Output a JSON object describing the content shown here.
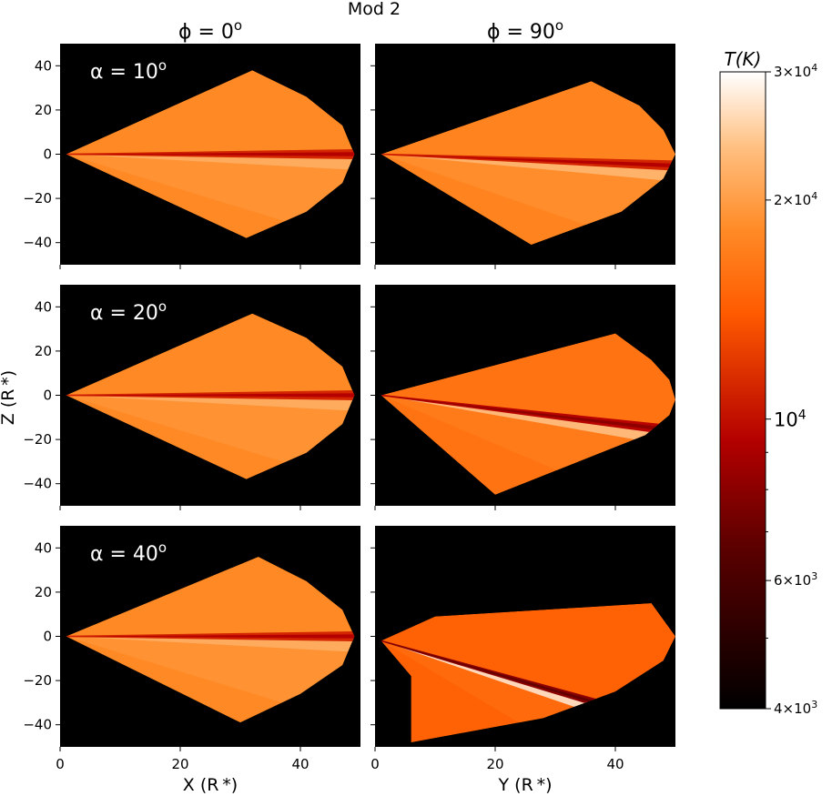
{
  "chart_data": {
    "type": "heatmap",
    "title": "Mod 2",
    "column_titles": [
      "ϕ = 0",
      "ϕ = 90"
    ],
    "column_title_superscript": "o",
    "row_labels": [
      "α = 10",
      "α = 20",
      "α = 40"
    ],
    "row_label_superscript": "o",
    "xlabels": [
      "X (R *)",
      "Y (R *)"
    ],
    "ylabel": "Z (R *)",
    "xlim": [
      0,
      50
    ],
    "ylim": [
      -50,
      50
    ],
    "xticks": [
      0,
      20,
      40
    ],
    "yticks": [
      40,
      20,
      0,
      -20,
      -40
    ],
    "colorbar": {
      "label": "T(K)",
      "scale": "log",
      "range": [
        4000,
        30000
      ],
      "ticks": [
        {
          "value": 30000,
          "mantissa": "3",
          "base": "10",
          "exp": "4"
        },
        {
          "value": 20000,
          "mantissa": "2",
          "base": "10",
          "exp": "4"
        },
        {
          "value": 10000,
          "mantissa": "",
          "base": "10",
          "exp": "4"
        },
        {
          "value": 6000,
          "mantissa": "6",
          "base": "10",
          "exp": "3"
        },
        {
          "value": 4000,
          "mantissa": "4",
          "base": "10",
          "exp": "3"
        }
      ],
      "minor_ticks": [
        5000,
        7000,
        8000,
        9000
      ],
      "stops": [
        {
          "t": 0.0,
          "color": "#000000"
        },
        {
          "t": 0.25,
          "color": "#5a0000"
        },
        {
          "t": 0.42,
          "color": "#b30000"
        },
        {
          "t": 0.62,
          "color": "#ff5a00"
        },
        {
          "t": 0.75,
          "color": "#ff8a25"
        },
        {
          "t": 0.88,
          "color": "#ffbf80"
        },
        {
          "t": 1.0,
          "color": "#ffffff"
        }
      ]
    },
    "panels": [
      {
        "row": 0,
        "col": 0,
        "bulk_temp_K": 18000,
        "disk_temp_K": 11000,
        "bright_temp_K": 22000,
        "outline": [
          [
            1,
            0
          ],
          [
            32,
            38
          ],
          [
            41,
            26
          ],
          [
            47,
            13
          ],
          [
            49,
            0
          ],
          [
            47,
            -13
          ],
          [
            41,
            -26
          ],
          [
            31,
            -38
          ]
        ],
        "disk_tilt": 0
      },
      {
        "row": 0,
        "col": 1,
        "bulk_temp_K": 17500,
        "disk_temp_K": 11000,
        "bright_temp_K": 23000,
        "outline": [
          [
            1,
            0
          ],
          [
            36,
            33
          ],
          [
            44,
            22
          ],
          [
            48,
            11
          ],
          [
            50,
            0
          ],
          [
            48,
            -11
          ],
          [
            41,
            -26
          ],
          [
            26,
            -41
          ]
        ],
        "disk_tilt": -6
      },
      {
        "row": 1,
        "col": 0,
        "bulk_temp_K": 18000,
        "disk_temp_K": 11000,
        "bright_temp_K": 22000,
        "outline": [
          [
            1,
            0
          ],
          [
            32,
            37
          ],
          [
            41,
            26
          ],
          [
            47,
            13
          ],
          [
            49,
            0
          ],
          [
            47,
            -13
          ],
          [
            41,
            -26
          ],
          [
            31,
            -38
          ]
        ],
        "disk_tilt": 0
      },
      {
        "row": 1,
        "col": 1,
        "bulk_temp_K": 16000,
        "disk_temp_K": 9500,
        "bright_temp_K": 24000,
        "outline": [
          [
            1,
            0
          ],
          [
            40,
            28
          ],
          [
            46,
            16
          ],
          [
            49,
            7
          ],
          [
            50,
            -2
          ],
          [
            49,
            -9
          ],
          [
            45,
            -18
          ],
          [
            20,
            -45
          ]
        ],
        "disk_tilt": -18
      },
      {
        "row": 2,
        "col": 0,
        "bulk_temp_K": 18000,
        "disk_temp_K": 11000,
        "bright_temp_K": 22000,
        "outline": [
          [
            1,
            0
          ],
          [
            33,
            36
          ],
          [
            41,
            25
          ],
          [
            47,
            12
          ],
          [
            49,
            0
          ],
          [
            47,
            -13
          ],
          [
            40,
            -26
          ],
          [
            30,
            -39
          ]
        ],
        "disk_tilt": 0
      },
      {
        "row": 2,
        "col": 1,
        "bulk_temp_K": 14500,
        "disk_temp_K": 8000,
        "bright_temp_K": 28000,
        "outline": [
          [
            1,
            -2
          ],
          [
            10,
            9
          ],
          [
            46,
            15
          ],
          [
            50,
            0
          ],
          [
            48,
            -11
          ],
          [
            40,
            -25
          ],
          [
            28,
            -37
          ],
          [
            6,
            -48
          ],
          [
            6,
            -18
          ]
        ],
        "disk_tilt": -38
      }
    ]
  }
}
